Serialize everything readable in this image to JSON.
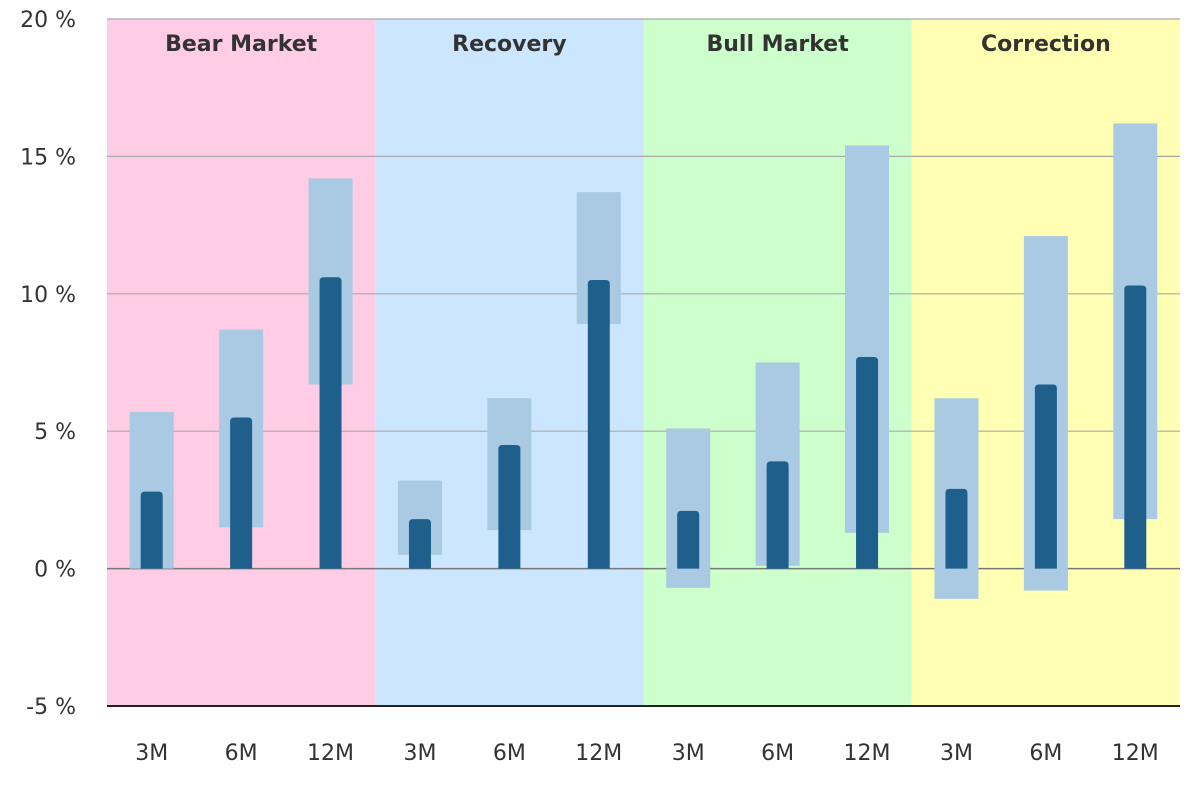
{
  "chart_data": {
    "type": "bar",
    "title": "",
    "xlabel": "",
    "ylabel": "",
    "ylim": [
      -5,
      20
    ],
    "yticks": [
      -5,
      0,
      5,
      10,
      15,
      20
    ],
    "ytick_suffix": " %",
    "grid": true,
    "phases": [
      {
        "name": "Bear Market",
        "color": "#ffcce6",
        "horizons": [
          "3M",
          "6M",
          "12M"
        ]
      },
      {
        "name": "Recovery",
        "color": "#cce6ff",
        "horizons": [
          "3M",
          "6M",
          "12M"
        ]
      },
      {
        "name": "Bull Market",
        "color": "#ccffcc",
        "horizons": [
          "3M",
          "6M",
          "12M"
        ]
      },
      {
        "name": "Correction",
        "color": "#ffffb3",
        "horizons": [
          "3M",
          "6M",
          "12M"
        ]
      }
    ],
    "series": [
      {
        "kind": "range",
        "color": "#a9cae2",
        "low": [
          0,
          1.5,
          6.7,
          0.5,
          1.4,
          8.9,
          -0.7,
          0.1,
          1.3,
          -1.1,
          -0.8,
          1.8
        ],
        "high": [
          5.7,
          8.7,
          14.2,
          3.2,
          6.2,
          13.7,
          5.1,
          7.5,
          15.4,
          6.2,
          12.1,
          16.2
        ]
      },
      {
        "kind": "bar",
        "color": "#1f5f8b",
        "values": [
          2.8,
          5.5,
          10.6,
          1.8,
          4.5,
          10.5,
          2.1,
          3.9,
          7.7,
          2.9,
          6.7,
          10.3
        ]
      }
    ]
  }
}
